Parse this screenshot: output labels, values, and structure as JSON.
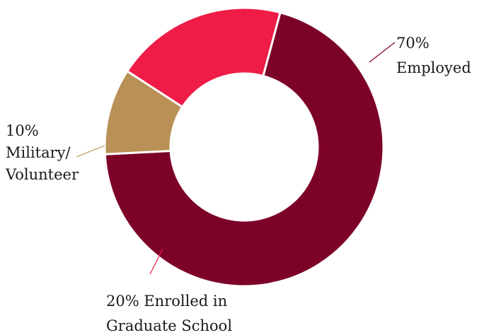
{
  "chart_data": {
    "type": "pie",
    "variant": "donut",
    "title": "",
    "slices": [
      {
        "label_line1": "70%",
        "label_line2": "Employed",
        "percent": 70,
        "color": "#7d0228"
      },
      {
        "label_line1": "20% Enrolled in",
        "label_line2": "Graduate School",
        "percent": 20,
        "color": "#ee1c46"
      },
      {
        "label_line1": "10%",
        "label_line2": "Military/",
        "label_line3": "Volunteer",
        "percent": 10,
        "color": "#b99156"
      }
    ],
    "legend": "none"
  }
}
